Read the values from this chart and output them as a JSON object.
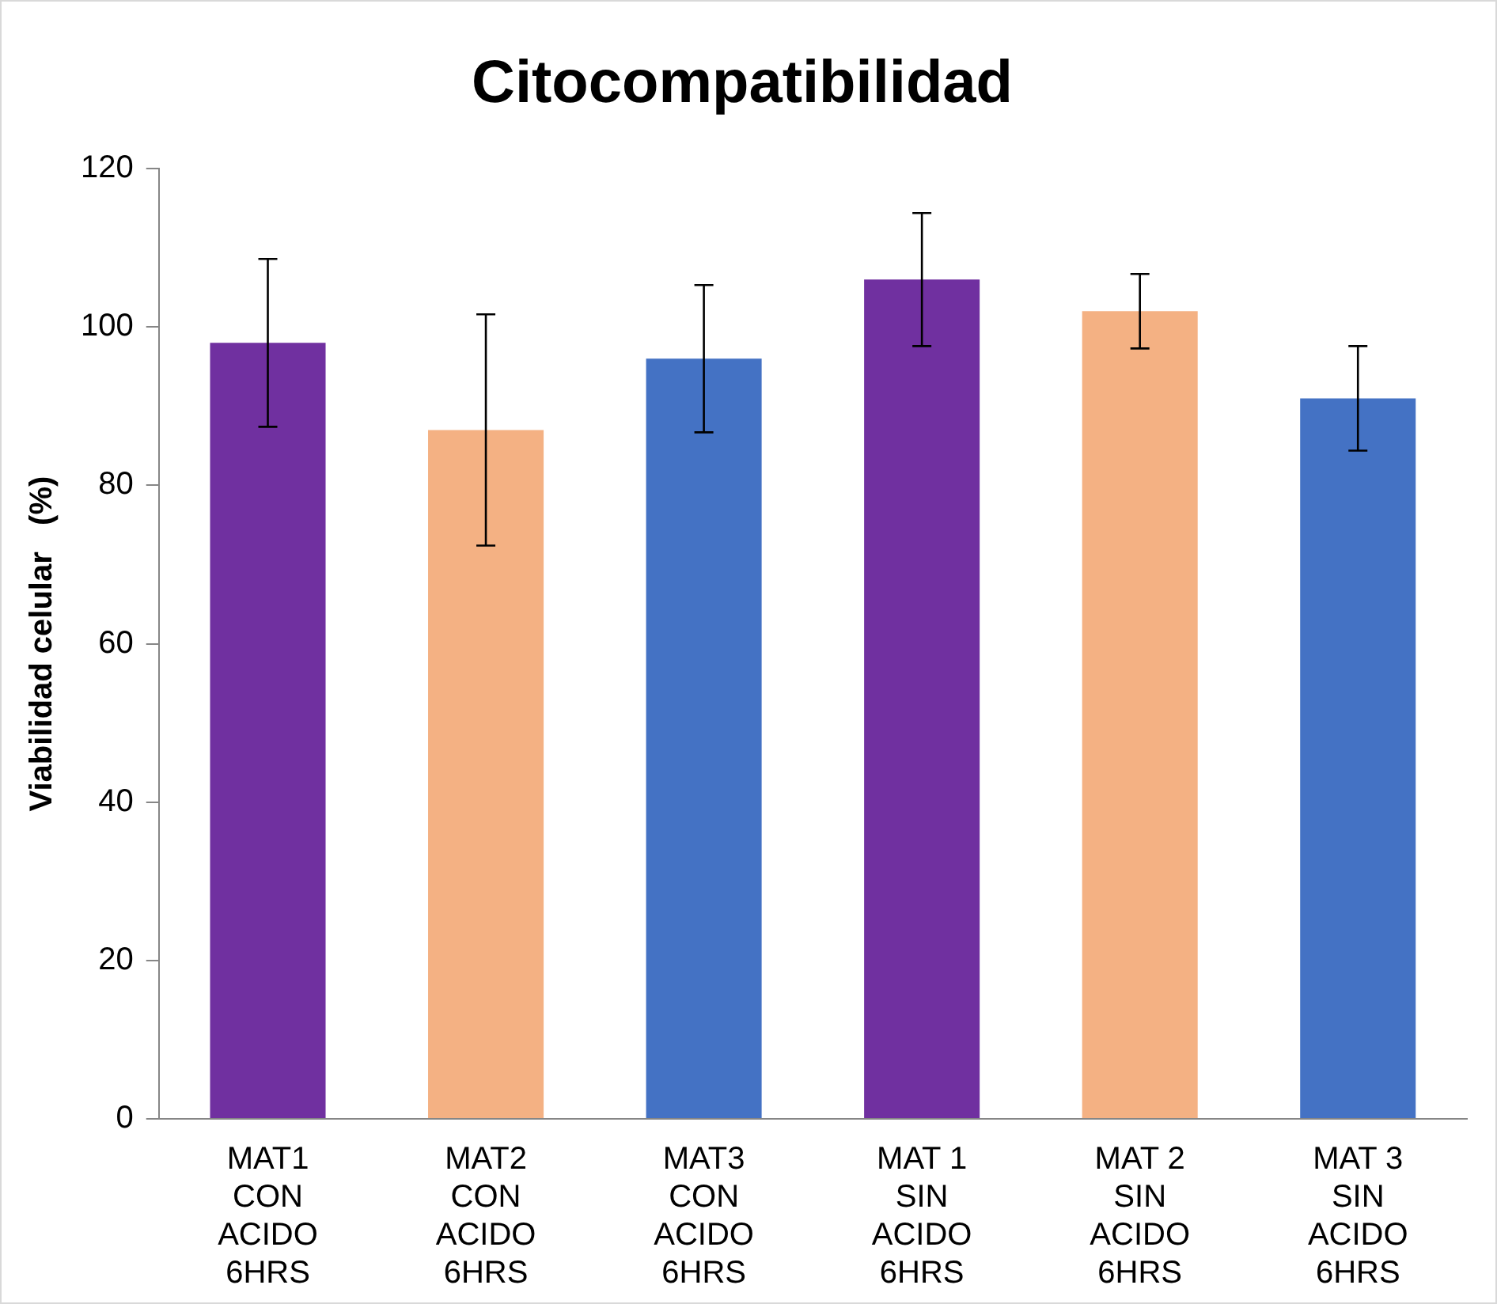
{
  "chart_data": {
    "type": "bar",
    "title": "Citocompatibilidad",
    "ylabel": "Viabilidad celular   (%)",
    "categories": [
      "MAT1\nCON\nACIDO\n6HRS",
      "MAT2\nCON\nACIDO\n6HRS",
      "MAT3\nCON\nACIDO\n6HRS",
      "MAT 1\nSIN\nACIDO\n6HRS",
      "MAT 2\nSIN\nACIDO\n6HRS",
      "MAT 3\nSIN\nACIDO\n6HRS"
    ],
    "values": [
      98,
      87,
      96,
      106,
      102,
      91
    ],
    "errors": [
      10.6,
      14.6,
      9.3,
      8.4,
      4.7,
      6.6
    ],
    "colors": [
      "#7030a0",
      "#f4b183",
      "#4472c4",
      "#7030a0",
      "#f4b183",
      "#4472c4"
    ],
    "ylim": [
      0,
      120
    ],
    "yticks": [
      0,
      20,
      40,
      60,
      80,
      100,
      120
    ],
    "grid": false,
    "legend": false
  }
}
